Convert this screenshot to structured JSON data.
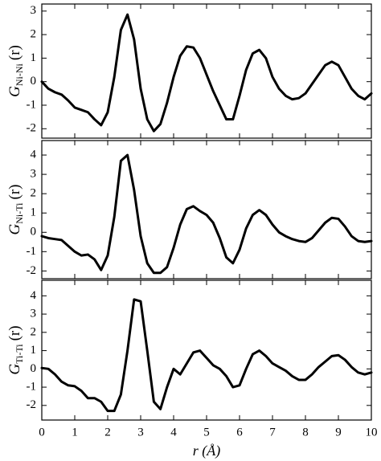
{
  "chart_data": [
    {
      "type": "line",
      "ylabel": {
        "symbol": "G",
        "subscript": "Ni-Ni",
        "argument": "(r)"
      },
      "xlim": [
        0,
        10
      ],
      "xticks": [
        0,
        1,
        2,
        3,
        4,
        5,
        6,
        7,
        8,
        9,
        10
      ],
      "ylim": [
        -2.4,
        3.3
      ],
      "yticks": [
        -2,
        -1,
        0,
        1,
        2,
        3
      ],
      "x": [
        0,
        0.2,
        0.4,
        0.6,
        0.8,
        1,
        1.2,
        1.4,
        1.6,
        1.8,
        2,
        2.2,
        2.4,
        2.6,
        2.8,
        3,
        3.2,
        3.4,
        3.6,
        3.8,
        4,
        4.2,
        4.4,
        4.6,
        4.8,
        5,
        5.2,
        5.4,
        5.6,
        5.8,
        6,
        6.2,
        6.4,
        6.6,
        6.8,
        7,
        7.2,
        7.4,
        7.6,
        7.8,
        8,
        8.2,
        8.4,
        8.6,
        8.8,
        9,
        9.2,
        9.4,
        9.6,
        9.8,
        10
      ],
      "series": [
        {
          "color": "#000000",
          "values": [
            0,
            -0.3,
            -0.45,
            -0.55,
            -0.8,
            -1.1,
            -1.2,
            -1.3,
            -1.6,
            -1.85,
            -1.3,
            0.2,
            2.2,
            2.85,
            1.8,
            -0.3,
            -1.6,
            -2.1,
            -1.8,
            -0.9,
            0.2,
            1.1,
            1.5,
            1.45,
            1.0,
            0.3,
            -0.4,
            -1.0,
            -1.6,
            -1.6,
            -0.6,
            0.5,
            1.2,
            1.35,
            1.0,
            0.2,
            -0.3,
            -0.6,
            -0.75,
            -0.7,
            -0.5,
            -0.1,
            0.3,
            0.7,
            0.85,
            0.7,
            0.2,
            -0.3,
            -0.6,
            -0.75,
            -0.5
          ]
        }
      ]
    },
    {
      "type": "line",
      "ylabel": {
        "symbol": "G",
        "subscript": "Ni-Ti",
        "argument": "(r)"
      },
      "xlim": [
        0,
        10
      ],
      "xticks": [
        0,
        1,
        2,
        3,
        4,
        5,
        6,
        7,
        8,
        9,
        10
      ],
      "ylim": [
        -2.4,
        4.75
      ],
      "yticks": [
        -2,
        -1,
        0,
        1,
        2,
        3,
        4
      ],
      "x": [
        0,
        0.2,
        0.4,
        0.6,
        0.8,
        1,
        1.2,
        1.4,
        1.6,
        1.8,
        2,
        2.2,
        2.4,
        2.6,
        2.8,
        3,
        3.2,
        3.4,
        3.6,
        3.8,
        4,
        4.2,
        4.4,
        4.6,
        4.8,
        5,
        5.2,
        5.4,
        5.6,
        5.8,
        6,
        6.2,
        6.4,
        6.6,
        6.8,
        7,
        7.2,
        7.4,
        7.6,
        7.8,
        8,
        8.2,
        8.4,
        8.6,
        8.8,
        9,
        9.2,
        9.4,
        9.6,
        9.8,
        10
      ],
      "series": [
        {
          "color": "#000000",
          "values": [
            -0.2,
            -0.3,
            -0.35,
            -0.4,
            -0.7,
            -1.0,
            -1.2,
            -1.15,
            -1.4,
            -1.95,
            -1.2,
            0.8,
            3.7,
            4.0,
            2.2,
            -0.2,
            -1.6,
            -2.1,
            -2.1,
            -1.8,
            -0.8,
            0.4,
            1.2,
            1.35,
            1.1,
            0.9,
            0.5,
            -0.3,
            -1.3,
            -1.6,
            -0.9,
            0.2,
            0.9,
            1.15,
            0.9,
            0.4,
            0.0,
            -0.2,
            -0.35,
            -0.45,
            -0.5,
            -0.3,
            0.1,
            0.5,
            0.75,
            0.7,
            0.3,
            -0.2,
            -0.45,
            -0.5,
            -0.45
          ]
        }
      ]
    },
    {
      "type": "line",
      "ylabel": {
        "symbol": "G",
        "subscript": "Ti-Ti",
        "argument": "(r)"
      },
      "xlabel": "r (Å)",
      "xlim": [
        0,
        10
      ],
      "xticks": [
        0,
        1,
        2,
        3,
        4,
        5,
        6,
        7,
        8,
        9,
        10
      ],
      "ylim": [
        -2.8,
        4.85
      ],
      "yticks": [
        -2,
        -1,
        0,
        1,
        2,
        3,
        4
      ],
      "x": [
        0,
        0.2,
        0.4,
        0.6,
        0.8,
        1,
        1.2,
        1.4,
        1.6,
        1.8,
        2,
        2.2,
        2.4,
        2.6,
        2.8,
        3,
        3.2,
        3.4,
        3.6,
        3.8,
        4,
        4.2,
        4.4,
        4.6,
        4.8,
        5,
        5.2,
        5.4,
        5.6,
        5.8,
        6,
        6.2,
        6.4,
        6.6,
        6.8,
        7,
        7.2,
        7.4,
        7.6,
        7.8,
        8,
        8.2,
        8.4,
        8.6,
        8.8,
        9,
        9.2,
        9.4,
        9.6,
        9.8,
        10
      ],
      "series": [
        {
          "color": "#000000",
          "values": [
            0.05,
            0.0,
            -0.3,
            -0.7,
            -0.9,
            -0.95,
            -1.2,
            -1.6,
            -1.6,
            -1.8,
            -2.3,
            -2.3,
            -1.4,
            1.0,
            3.8,
            3.7,
            1.0,
            -1.8,
            -2.2,
            -1.0,
            0.0,
            -0.3,
            0.3,
            0.9,
            1.0,
            0.6,
            0.2,
            0.0,
            -0.4,
            -1.0,
            -0.9,
            0.0,
            0.8,
            1.0,
            0.7,
            0.3,
            0.1,
            -0.1,
            -0.4,
            -0.6,
            -0.6,
            -0.3,
            0.1,
            0.4,
            0.7,
            0.75,
            0.5,
            0.1,
            -0.2,
            -0.3,
            -0.2
          ]
        }
      ]
    }
  ]
}
